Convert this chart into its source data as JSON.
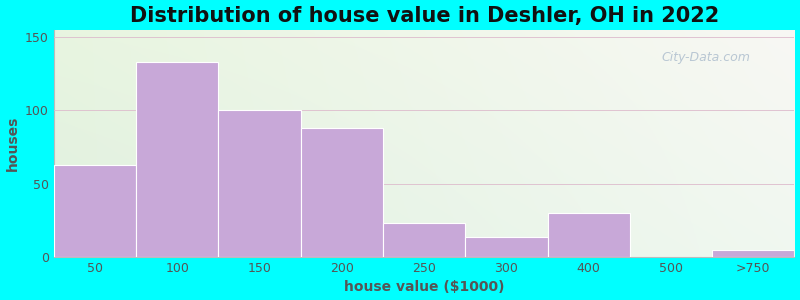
{
  "title": "Distribution of house value in Deshler, OH in 2022",
  "xlabel": "house value ($1000)",
  "ylabel": "houses",
  "bar_values": [
    63,
    133,
    100,
    88,
    23,
    14,
    30,
    0,
    5
  ],
  "bar_labels": [
    "50",
    "100",
    "150",
    "200",
    "250",
    "300",
    "400",
    "500",
    ">750"
  ],
  "bar_color": "#c8a8d8",
  "bar_edgecolor": "#ffffff",
  "ylim": [
    0,
    155
  ],
  "yticks": [
    0,
    50,
    100,
    150
  ],
  "background_outer": "#00ffff",
  "bg_color_topleft": "#e8f5e0",
  "bg_color_topright": "#f5f5f0",
  "bg_color_bottomright": "#e0f0e0",
  "title_fontsize": 15,
  "axis_fontsize": 10,
  "tick_fontsize": 9,
  "watermark_text": "City-Data.com",
  "watermark_color": "#aabbcc",
  "figsize": [
    8.0,
    3.0
  ],
  "dpi": 100
}
